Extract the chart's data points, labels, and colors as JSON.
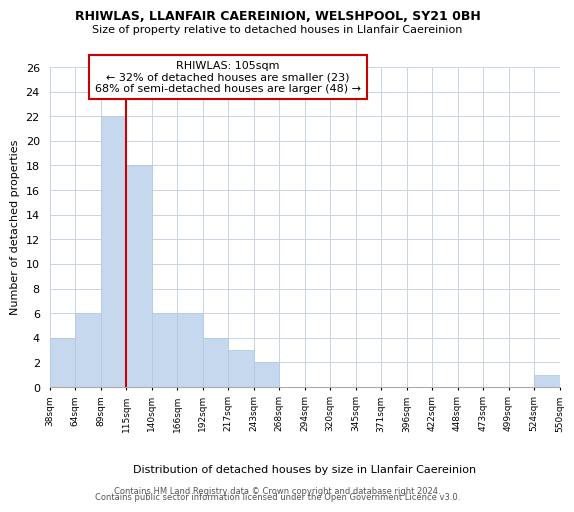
{
  "title1": "RHIWLAS, LLANFAIR CAEREINION, WELSHPOOL, SY21 0BH",
  "title2": "Size of property relative to detached houses in Llanfair Caereinion",
  "xlabel": "Distribution of detached houses by size in Llanfair Caereinion",
  "ylabel": "Number of detached properties",
  "footnote1": "Contains HM Land Registry data © Crown copyright and database right 2024.",
  "footnote2": "Contains public sector information licensed under the Open Government Licence v3.0.",
  "bin_labels": [
    "38sqm",
    "64sqm",
    "89sqm",
    "115sqm",
    "140sqm",
    "166sqm",
    "192sqm",
    "217sqm",
    "243sqm",
    "268sqm",
    "294sqm",
    "320sqm",
    "345sqm",
    "371sqm",
    "396sqm",
    "422sqm",
    "448sqm",
    "473sqm",
    "499sqm",
    "524sqm",
    "550sqm"
  ],
  "bar_values": [
    4,
    6,
    22,
    18,
    6,
    6,
    4,
    3,
    2,
    0,
    0,
    0,
    0,
    0,
    0,
    0,
    0,
    0,
    0,
    1,
    0
  ],
  "bar_color": "#c5d8ed",
  "bar_edge_color": "#afc8e0",
  "ylim": [
    0,
    26
  ],
  "yticks": [
    0,
    2,
    4,
    6,
    8,
    10,
    12,
    14,
    16,
    18,
    20,
    22,
    24,
    26
  ],
  "vline_color": "#cc0000",
  "annotation_title": "RHIWLAS: 105sqm",
  "annotation_line1": "← 32% of detached houses are smaller (23)",
  "annotation_line2": "68% of semi-detached houses are larger (48) →",
  "annotation_box_color": "#ffffff",
  "annotation_box_edge": "#cc0000",
  "background_color": "#ffffff",
  "grid_color": "#c8d4e3"
}
